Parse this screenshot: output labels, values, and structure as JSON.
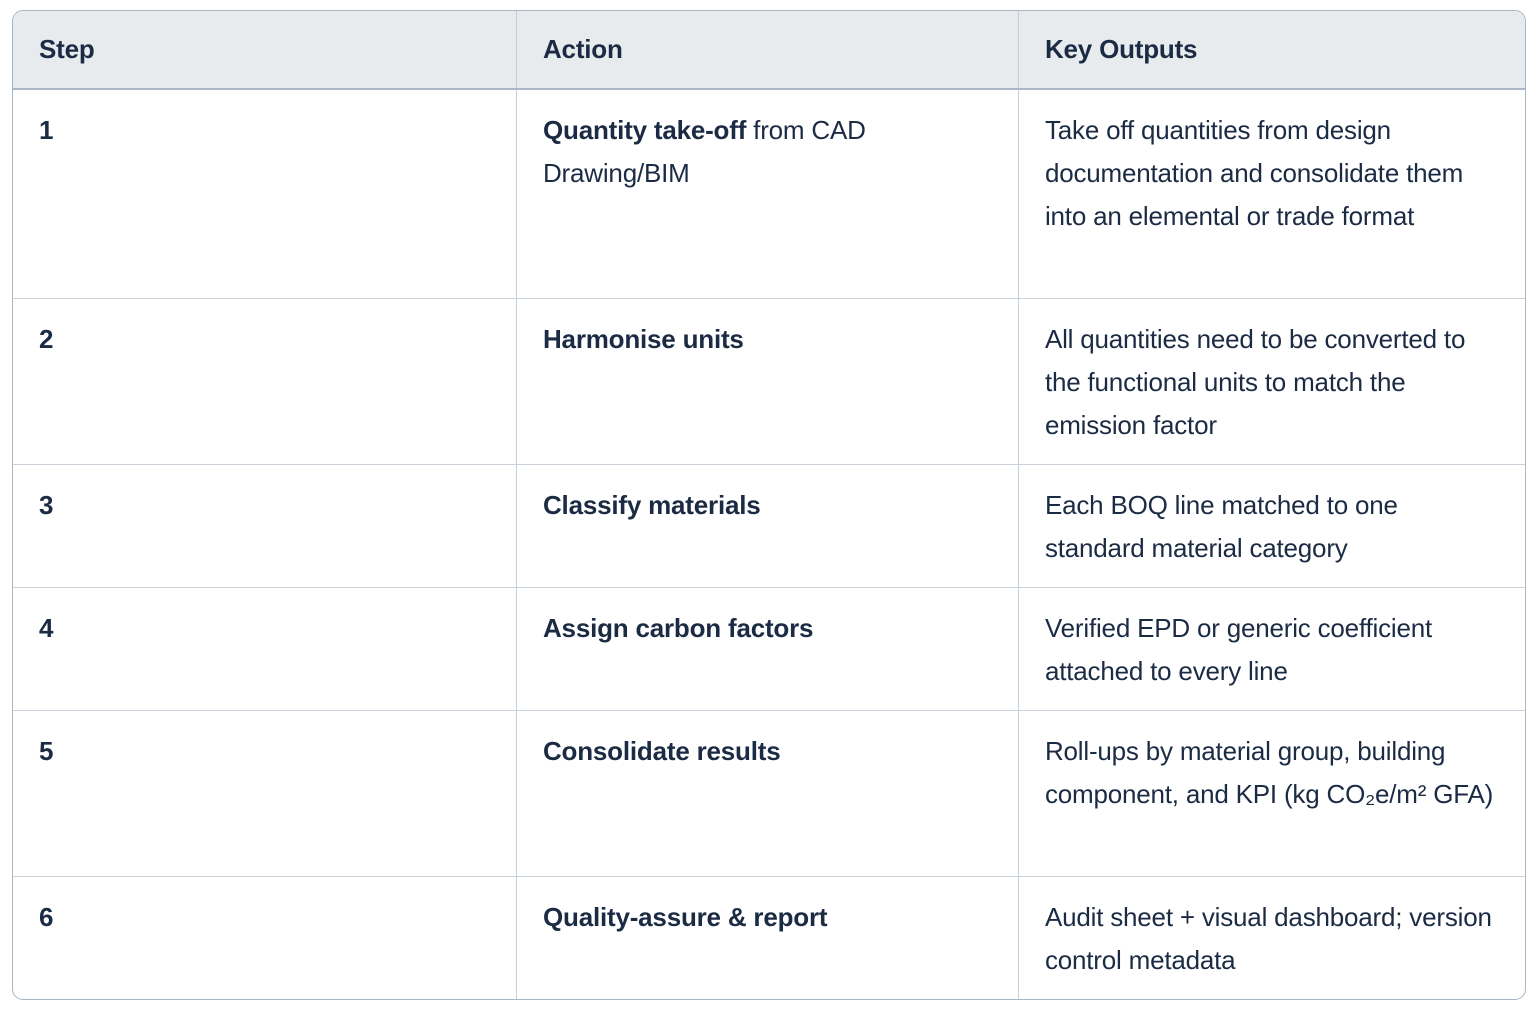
{
  "table": {
    "headers": [
      "Step",
      "Action",
      "Key Outputs"
    ],
    "rows": [
      {
        "step": "1",
        "action_bold": "Quantity take-off",
        "action_rest": " from CAD Drawing/BIM",
        "output": "Take off quantities from design documentation and consolidate them into an elemental or trade format"
      },
      {
        "step": "2",
        "action_bold": "Harmonise units",
        "action_rest": "",
        "output": "All quantities need to be converted to the functional units to match the emission factor"
      },
      {
        "step": "3",
        "action_bold": "Classify materials",
        "action_rest": "",
        "output": "Each BOQ line matched to one standard material category"
      },
      {
        "step": "4",
        "action_bold": "Assign carbon factors",
        "action_rest": "",
        "output": "Verified EPD or generic coefficient attached to every line"
      },
      {
        "step": "5",
        "action_bold": "Consolidate results",
        "action_rest": "",
        "output": "Roll-ups by material group, building component, and KPI (kg CO₂e/m² GFA)"
      },
      {
        "step": "6",
        "action_bold": "Quality-assure & report",
        "action_rest": "",
        "output": "Audit sheet + visual dashboard; version control metadata"
      }
    ]
  },
  "colors": {
    "text": "#1c2b44",
    "header_background": "#e8ebee",
    "outer_border": "#a9b6c3",
    "header_bottom_border": "#aab7c4",
    "grid_line": "#c9d2da",
    "page_background": "#ffffff"
  }
}
